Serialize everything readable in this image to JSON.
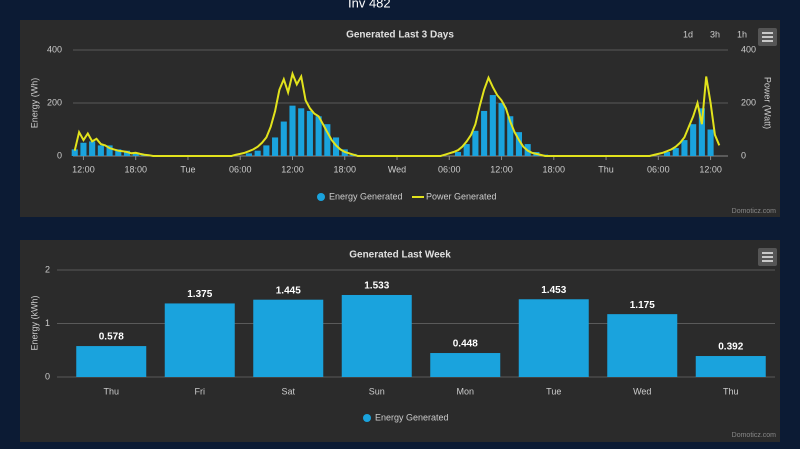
{
  "header": "Inv 482",
  "chart_data": [
    {
      "type": "combo",
      "title": "Generated Last 3 Days",
      "buttons": [
        "1d",
        "3h",
        "1h"
      ],
      "credit": "Domoticz.com",
      "y_label": "Energy (Wh)",
      "y2_label": "Power (Watt)",
      "xlim": [
        10.8,
        86
      ],
      "xticks": [
        {
          "value": 12,
          "label": "12:00"
        },
        {
          "value": 18,
          "label": "18:00"
        },
        {
          "value": 24,
          "label": "Tue"
        },
        {
          "value": 30,
          "label": "06:00"
        },
        {
          "value": 36,
          "label": "12:00"
        },
        {
          "value": 42,
          "label": "18:00"
        },
        {
          "value": 48,
          "label": "Wed"
        },
        {
          "value": 54,
          "label": "06:00"
        },
        {
          "value": 60,
          "label": "12:00"
        },
        {
          "value": 66,
          "label": "18:00"
        },
        {
          "value": 72,
          "label": "Thu"
        },
        {
          "value": 78,
          "label": "06:00"
        },
        {
          "value": 84,
          "label": "12:00"
        }
      ],
      "ylim": [
        0,
        400
      ],
      "yticks": [
        0,
        200,
        400
      ],
      "y2lim": [
        0,
        400
      ],
      "y2ticks": [
        0,
        200,
        400
      ],
      "grid": true,
      "series": [
        {
          "name": "Energy Generated",
          "kind": "bar",
          "color": "#1aa3dd",
          "x": [
            11,
            12,
            13,
            14,
            15,
            16,
            17,
            18,
            19,
            31,
            32,
            33,
            34,
            35,
            36,
            37,
            38,
            39,
            40,
            41,
            42,
            43,
            55,
            56,
            57,
            58,
            59,
            60,
            61,
            62,
            63,
            64,
            65,
            79,
            80,
            81,
            82,
            83,
            84
          ],
          "values": [
            25,
            50,
            55,
            40,
            40,
            25,
            20,
            12,
            5,
            10,
            20,
            40,
            70,
            130,
            190,
            180,
            170,
            150,
            120,
            70,
            25,
            8,
            15,
            45,
            95,
            170,
            230,
            200,
            150,
            90,
            45,
            15,
            5,
            15,
            30,
            60,
            120,
            180,
            100
          ]
        },
        {
          "name": "Power Generated",
          "kind": "line",
          "axis": "y2",
          "color": "#e2e31c",
          "x": [
            11,
            11.5,
            12,
            12.5,
            13,
            13.5,
            14,
            14.5,
            15,
            15.5,
            16,
            16.5,
            17,
            17.5,
            18,
            18.5,
            19,
            19.5,
            20,
            29,
            29.5,
            30,
            30.5,
            31,
            31.5,
            32,
            32.5,
            33,
            33.5,
            34,
            34.5,
            35,
            35.5,
            36,
            36.5,
            37,
            37.5,
            38,
            38.5,
            39,
            39.5,
            40,
            40.5,
            41,
            41.5,
            42,
            42.5,
            43,
            43.5,
            53,
            53.5,
            54,
            54.5,
            55,
            55.5,
            56,
            56.5,
            57,
            57.5,
            58,
            58.5,
            59,
            59.5,
            60,
            60.5,
            61,
            61.5,
            62,
            62.5,
            63,
            63.5,
            64,
            64.5,
            65,
            77,
            77.5,
            78,
            78.5,
            79,
            79.5,
            80,
            80.5,
            81,
            81.5,
            82,
            82.5,
            83,
            83.5,
            84,
            84.5,
            85
          ],
          "values": [
            20,
            90,
            60,
            85,
            55,
            65,
            45,
            40,
            30,
            25,
            20,
            18,
            15,
            10,
            12,
            8,
            5,
            3,
            0,
            0,
            5,
            8,
            12,
            18,
            25,
            35,
            50,
            70,
            110,
            170,
            250,
            290,
            240,
            310,
            270,
            300,
            210,
            180,
            160,
            150,
            120,
            90,
            60,
            40,
            25,
            15,
            10,
            5,
            0,
            0,
            5,
            10,
            15,
            22,
            35,
            55,
            80,
            120,
            190,
            250,
            295,
            260,
            230,
            210,
            180,
            130,
            90,
            60,
            35,
            20,
            12,
            8,
            4,
            0,
            0,
            4,
            8,
            12,
            18,
            25,
            35,
            50,
            70,
            110,
            150,
            200,
            120,
            300,
            200,
            80,
            40
          ]
        }
      ]
    },
    {
      "type": "bar",
      "title": "Generated Last Week",
      "credit": "Domoticz.com",
      "y_label": "Energy (kWh)",
      "categories": [
        "Thu",
        "Fri",
        "Sat",
        "Sun",
        "Mon",
        "Tue",
        "Wed",
        "Thu"
      ],
      "ylim": [
        0,
        2
      ],
      "yticks": [
        0,
        1,
        2
      ],
      "grid": true,
      "series": [
        {
          "name": "Energy Generated",
          "color": "#1aa3dd",
          "values": [
            0.578,
            1.375,
            1.445,
            1.533,
            0.448,
            1.453,
            1.175,
            0.392
          ]
        }
      ]
    }
  ]
}
